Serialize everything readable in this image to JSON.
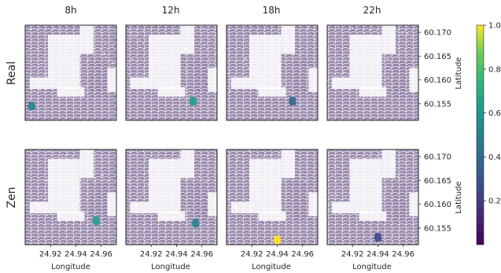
{
  "chart_data": {
    "type": "heatmap",
    "columns": [
      "8h",
      "12h",
      "18h",
      "22h"
    ],
    "rows": [
      "Real",
      "Zen"
    ],
    "x_tick_labels": [
      "24.92",
      "24.94",
      "24.96"
    ],
    "x_ticks": [
      24.92,
      24.94,
      24.96
    ],
    "xlabel": "Longitude",
    "xlim": [
      24.9,
      24.972
    ],
    "y_tick_labels": [
      "60.170",
      "60.165",
      "60.160",
      "60.155"
    ],
    "y_ticks": [
      60.17,
      60.165,
      60.16,
      60.155
    ],
    "ylabel": "Latitude",
    "ylim": [
      60.1515,
      60.1715
    ],
    "colorbar": {
      "tick_labels": [
        "0.2",
        "0.4",
        "0.6",
        "0.8",
        "1.0"
      ],
      "ticks": [
        0.2,
        0.4,
        0.6,
        0.8,
        1.0
      ],
      "range": [
        0.0,
        1.0
      ],
      "colormap": "viridis"
    },
    "hotspots": [
      {
        "row": "Real",
        "col": "8h",
        "lon": 24.905,
        "lat": 60.1545,
        "value": 0.45
      },
      {
        "row": "Real",
        "col": "12h",
        "lon": 24.953,
        "lat": 60.1555,
        "value": 0.5
      },
      {
        "row": "Real",
        "col": "18h",
        "lon": 24.952,
        "lat": 60.1555,
        "value": 0.3
      },
      {
        "row": "Zen",
        "col": "8h",
        "lon": 24.956,
        "lat": 60.1565,
        "value": 0.55
      },
      {
        "row": "Zen",
        "col": "12h",
        "lon": 24.955,
        "lat": 60.156,
        "value": 0.45
      },
      {
        "row": "Zen",
        "col": "18h",
        "lon": 24.94,
        "lat": 60.1525,
        "value": 0.95
      },
      {
        "row": "Zen",
        "col": "22h",
        "lon": 24.94,
        "lat": 60.153,
        "value": 0.25
      }
    ]
  }
}
